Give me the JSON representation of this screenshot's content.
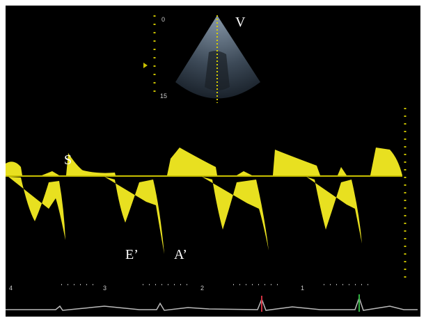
{
  "labels": {
    "view": "V",
    "s_wave": "S",
    "e_wave": "E’",
    "a_wave": "A’"
  },
  "depth_scale": {
    "top": "0",
    "bottom": "15"
  },
  "timeline": [
    "4",
    "3",
    "2",
    "1"
  ]
}
